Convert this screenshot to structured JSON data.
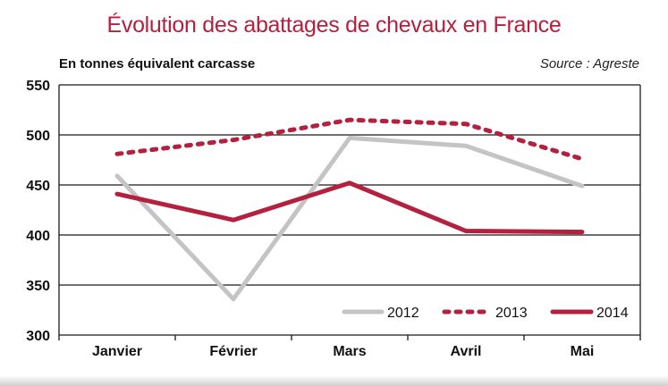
{
  "title": "Évolution des abattages de chevaux en France",
  "units_label": "En tonnes équivalent carcasse",
  "source_label": "Source : Agreste",
  "colors": {
    "title": "#b3213f",
    "series_2012": "#c4c4c4",
    "series_2013": "#b3213f",
    "series_2014": "#b3213f",
    "grid": "#1a1a1a"
  },
  "chart_data": {
    "type": "line",
    "title": "Évolution des abattages de chevaux en France",
    "ylabel": "En tonnes équivalent carcasse",
    "xlabel": "",
    "categories": [
      "Janvier",
      "Février",
      "Mars",
      "Avril",
      "Mai"
    ],
    "ylim": [
      300,
      550
    ],
    "yticks": [
      300,
      350,
      400,
      450,
      500,
      550
    ],
    "grid": true,
    "legend_position": "bottom-right",
    "series": [
      {
        "name": "2012",
        "style": "solid-grey",
        "values": [
          459,
          336,
          497,
          489,
          449
        ]
      },
      {
        "name": "2013",
        "style": "dotted-red",
        "values": [
          481,
          495,
          515,
          511,
          476
        ]
      },
      {
        "name": "2014",
        "style": "solid-red",
        "values": [
          441,
          415,
          452,
          404,
          403
        ]
      }
    ]
  }
}
